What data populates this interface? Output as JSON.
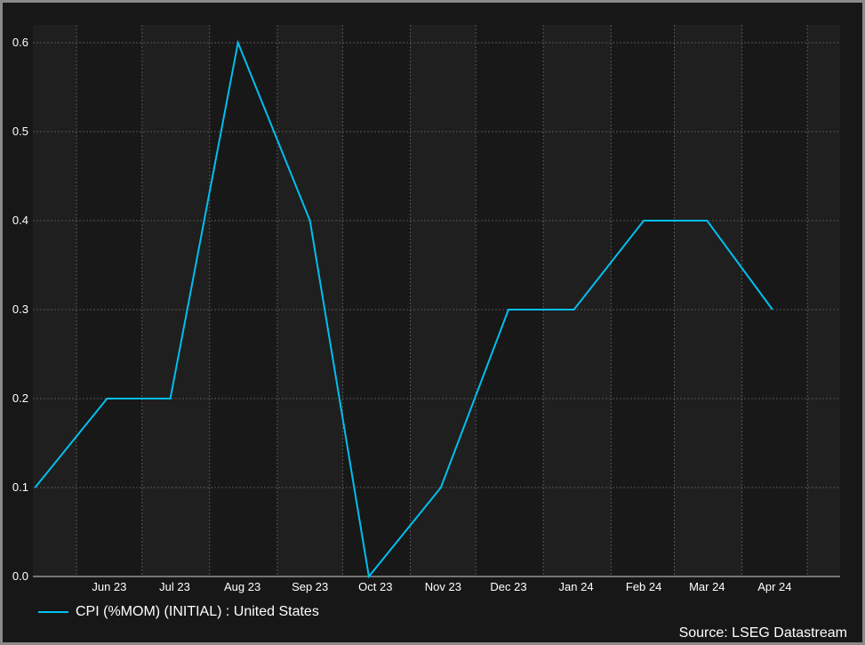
{
  "chart_data": {
    "type": "line",
    "title": "",
    "xlabel": "",
    "ylabel": "",
    "x": [
      "2023-05-13",
      "2023-06-15",
      "2023-07-14",
      "2023-08-14",
      "2023-09-16",
      "2023-10-13",
      "2023-11-15",
      "2023-12-16",
      "2024-01-15",
      "2024-02-16",
      "2024-03-16",
      "2024-04-15"
    ],
    "series": [
      {
        "name": "CPI (%MOM) (INITIAL) : United States",
        "color": "#00bfef",
        "values": [
          0.1,
          0.2,
          0.2,
          0.6,
          0.4,
          0.0,
          0.1,
          0.3,
          0.3,
          0.4,
          0.4,
          0.3
        ]
      }
    ],
    "xlim": [
      "2023-05-12",
      "2024-05-16"
    ],
    "ylim": [
      0.0,
      0.62
    ],
    "yticks": [
      "0.0",
      "0.1",
      "0.2",
      "0.3",
      "0.4",
      "0.5",
      "0.6"
    ],
    "xticks": [
      {
        "label": "Jun 23",
        "date": "2023-06-16"
      },
      {
        "label": "Jul 23",
        "date": "2023-07-16"
      },
      {
        "label": "Aug 23",
        "date": "2023-08-16"
      },
      {
        "label": "Sep 23",
        "date": "2023-09-16"
      },
      {
        "label": "Oct 23",
        "date": "2023-10-16"
      },
      {
        "label": "Nov 23",
        "date": "2023-11-16"
      },
      {
        "label": "Dec 23",
        "date": "2023-12-16"
      },
      {
        "label": "Jan 24",
        "date": "2024-01-16"
      },
      {
        "label": "Feb 24",
        "date": "2024-02-16"
      },
      {
        "label": "Mar 24",
        "date": "2024-03-16"
      },
      {
        "label": "Apr 24",
        "date": "2024-04-16"
      }
    ],
    "grid": true,
    "legend": "bottom-left",
    "source": "Source: LSEG Datastream"
  }
}
